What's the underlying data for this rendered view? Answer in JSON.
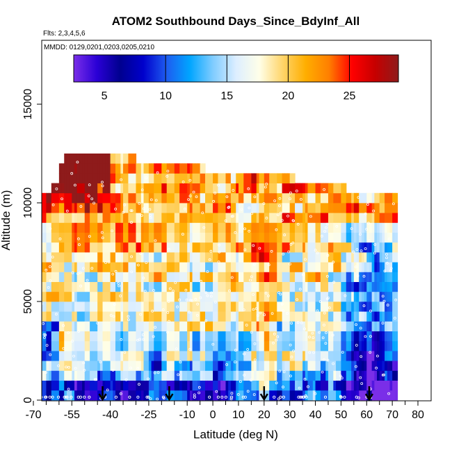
{
  "chart_data": {
    "type": "heatmap",
    "title": "ATOM2 Southbound Days_Since_BdyInf_All",
    "subtitle_flights": "Flts: 2,3,4,5,6",
    "subtitle_dates": "MMDD: 0129,0201,0203,0205,0210",
    "xlabel": "Latitude (deg N)",
    "ylabel": "Altitude (m)",
    "xlim": [
      -70,
      80
    ],
    "ylim": [
      0,
      17500
    ],
    "x_ticks": [
      -70,
      -55,
      -40,
      -25,
      -10,
      0,
      10,
      20,
      30,
      40,
      50,
      60,
      70,
      80
    ],
    "x_minor_ticks": [
      -65,
      -60,
      -50,
      -45,
      -35,
      -30,
      -20,
      -15,
      -5,
      5,
      15,
      25,
      35,
      45,
      55,
      65,
      75
    ],
    "y_ticks": [
      0,
      5000,
      10000,
      15000
    ],
    "colorbar": {
      "range": [
        2.5,
        29
      ],
      "ticks": [
        5,
        10,
        15,
        20,
        25
      ],
      "placement": "top",
      "colors": [
        "#7a2ee8",
        "#2a00d6",
        "#00008f",
        "#0000cc",
        "#1e5cf0",
        "#00a5ff",
        "#7fccff",
        "#ddeeff",
        "#ffffe8",
        "#ffd56b",
        "#ffae00",
        "#ff7f00",
        "#ff0000",
        "#c60000",
        "#8e1b1b"
      ]
    },
    "arrows_at_latitude": [
      -43,
      -17,
      20,
      61
    ],
    "data_extent": {
      "latitude": [
        -67,
        72
      ],
      "altitude": [
        0,
        12500
      ]
    }
  }
}
